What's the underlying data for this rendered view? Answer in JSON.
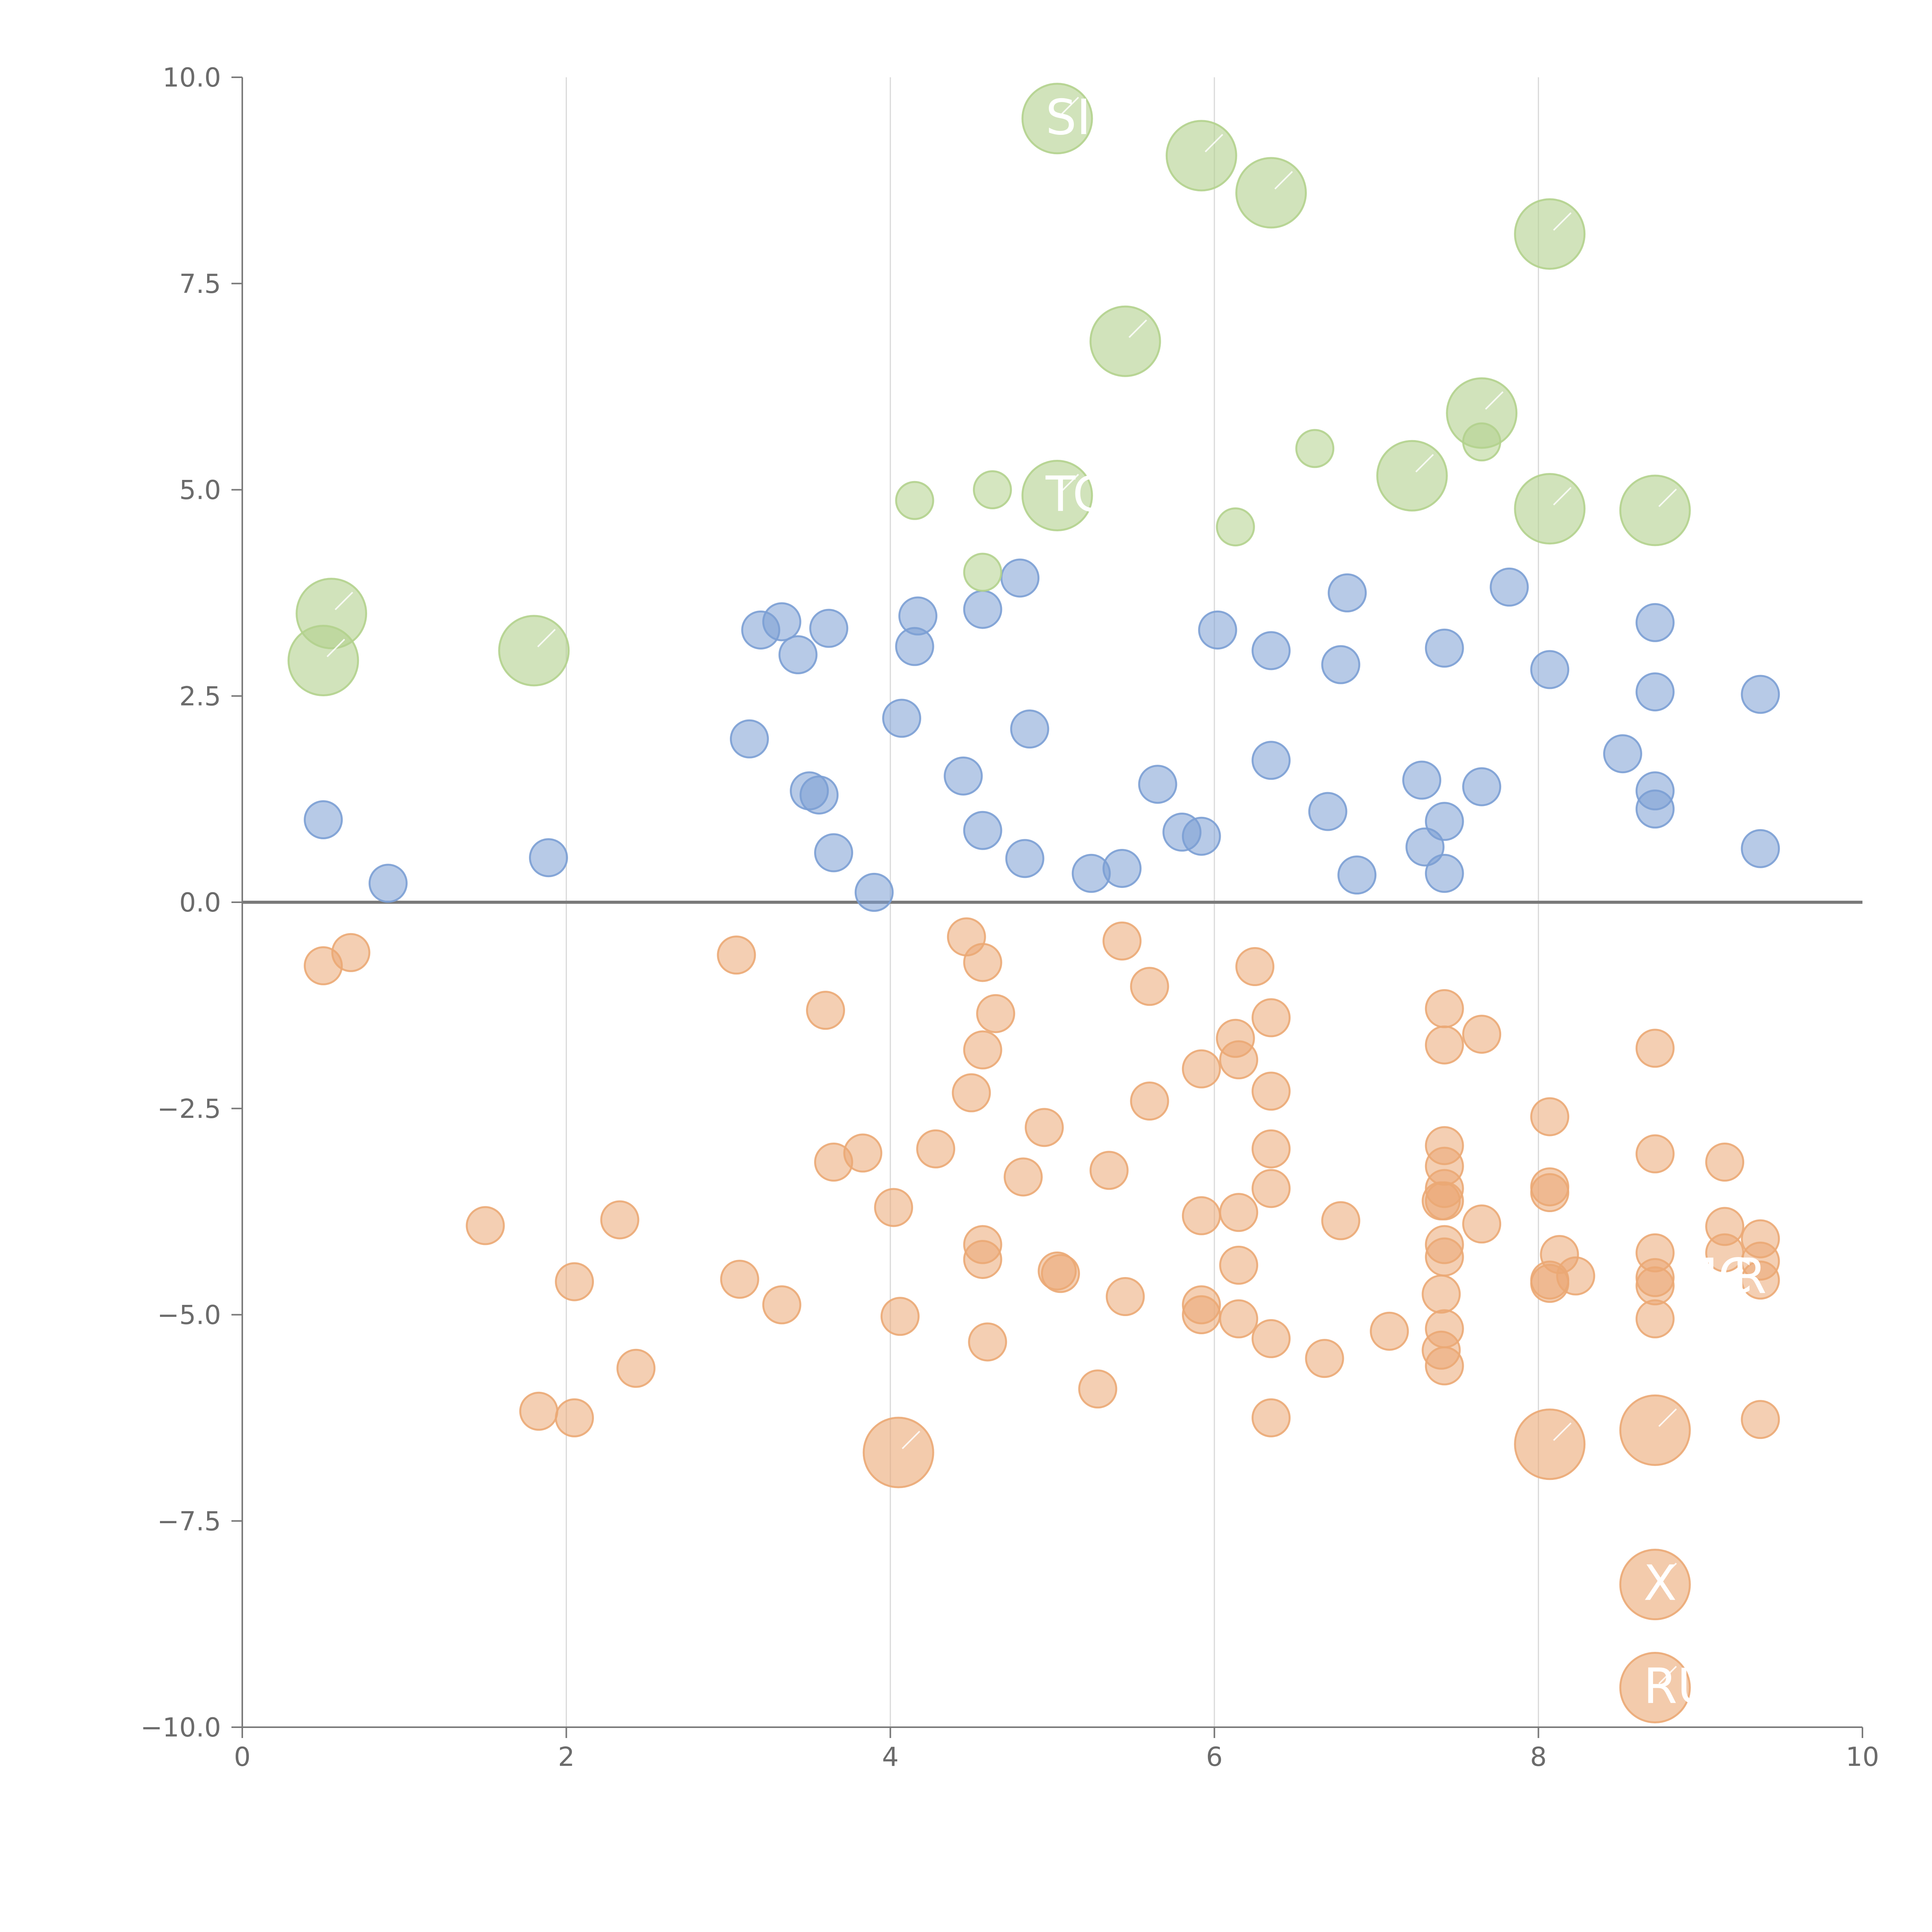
{
  "chart_data": {
    "type": "scatter",
    "xlim": [
      0,
      10
    ],
    "ylim": [
      -10,
      10
    ],
    "x_ticks": [
      "0",
      "2",
      "4",
      "6",
      "8",
      "10"
    ],
    "y_ticks": [
      "10.0",
      "7.5",
      "5.0",
      "2.5",
      "0.0",
      "−2.5",
      "−5.0",
      "−7.5",
      "−10.0"
    ],
    "grid": "vertical",
    "colors": {
      "blue": "#7b9fd4",
      "orange": "#eba874",
      "green": "#b3d18d"
    },
    "series": [
      {
        "color": "#7b9fd4",
        "points": [
          [
            0.5,
            1.0
          ],
          [
            0.9,
            0.23
          ],
          [
            1.89,
            0.54
          ],
          [
            3.13,
            1.98
          ],
          [
            3.2,
            3.3
          ],
          [
            3.33,
            3.4
          ],
          [
            3.43,
            3.0
          ],
          [
            3.5,
            1.35
          ],
          [
            3.56,
            1.3
          ],
          [
            3.62,
            3.32
          ],
          [
            3.65,
            0.6
          ],
          [
            3.9,
            0.12
          ],
          [
            4.07,
            2.23
          ],
          [
            4.15,
            3.1
          ],
          [
            4.17,
            3.47
          ],
          [
            4.45,
            1.53
          ],
          [
            4.57,
            0.87
          ],
          [
            4.57,
            3.55
          ],
          [
            4.8,
            3.93
          ],
          [
            4.83,
            0.53
          ],
          [
            4.86,
            2.1
          ],
          [
            5.24,
            0.35
          ],
          [
            5.43,
            0.41
          ],
          [
            5.65,
            1.43
          ],
          [
            5.8,
            0.85
          ],
          [
            5.92,
            0.8
          ],
          [
            6.02,
            3.3
          ],
          [
            6.35,
            3.05
          ],
          [
            6.35,
            1.72
          ],
          [
            6.7,
            1.1
          ],
          [
            6.78,
            2.88
          ],
          [
            6.82,
            3.75
          ],
          [
            6.88,
            0.33
          ],
          [
            7.28,
            1.48
          ],
          [
            7.3,
            0.67
          ],
          [
            7.42,
            0.35
          ],
          [
            7.42,
            0.98
          ],
          [
            7.42,
            3.08
          ],
          [
            7.65,
            1.4
          ],
          [
            7.82,
            3.82
          ],
          [
            8.07,
            2.82
          ],
          [
            8.52,
            1.8
          ],
          [
            8.72,
            3.39
          ],
          [
            8.72,
            2.55
          ],
          [
            8.72,
            1.35
          ],
          [
            8.72,
            1.13
          ],
          [
            9.37,
            2.52
          ],
          [
            9.37,
            0.65
          ]
        ]
      },
      {
        "color": "#eba874",
        "points": [
          [
            0.5,
            -0.77
          ],
          [
            0.67,
            -0.61
          ],
          [
            1.5,
            -3.92
          ],
          [
            1.83,
            -6.17
          ],
          [
            2.05,
            -4.6
          ],
          [
            2.05,
            -6.25
          ],
          [
            2.33,
            -3.85
          ],
          [
            2.43,
            -5.65
          ],
          [
            3.05,
            -0.64
          ],
          [
            3.07,
            -4.57
          ],
          [
            3.33,
            -4.88
          ],
          [
            3.6,
            -1.31
          ],
          [
            3.65,
            -3.15
          ],
          [
            3.83,
            -3.04
          ],
          [
            4.02,
            -3.7
          ],
          [
            4.06,
            -5.02
          ],
          [
            4.28,
            -2.99
          ],
          [
            4.47,
            -0.42
          ],
          [
            4.5,
            -2.31
          ],
          [
            4.57,
            -0.73
          ],
          [
            4.57,
            -1.79
          ],
          [
            4.57,
            -4.15
          ],
          [
            4.57,
            -4.33
          ],
          [
            4.6,
            -5.33
          ],
          [
            4.65,
            -1.35
          ],
          [
            4.82,
            -3.33
          ],
          [
            4.95,
            -2.73
          ],
          [
            5.03,
            -4.47
          ],
          [
            5.05,
            -4.5
          ],
          [
            5.28,
            -5.9
          ],
          [
            5.35,
            -3.25
          ],
          [
            5.43,
            -0.47
          ],
          [
            5.45,
            -4.78
          ],
          [
            5.6,
            -2.41
          ],
          [
            5.6,
            -1.02
          ],
          [
            5.92,
            -2.02
          ],
          [
            5.92,
            -3.8
          ],
          [
            5.92,
            -4.88
          ],
          [
            5.92,
            -5.0
          ],
          [
            6.13,
            -1.65
          ],
          [
            6.15,
            -1.91
          ],
          [
            6.15,
            -3.76
          ],
          [
            6.15,
            -4.4
          ],
          [
            6.15,
            -5.05
          ],
          [
            6.25,
            -0.78
          ],
          [
            6.35,
            -1.4
          ],
          [
            6.35,
            -2.29
          ],
          [
            6.35,
            -2.99
          ],
          [
            6.35,
            -3.47
          ],
          [
            6.35,
            -5.29
          ],
          [
            6.35,
            -6.25
          ],
          [
            6.68,
            -5.53
          ],
          [
            6.78,
            -3.86
          ],
          [
            7.08,
            -5.2
          ],
          [
            7.4,
            -3.62
          ],
          [
            7.4,
            -4.75
          ],
          [
            7.4,
            -5.43
          ],
          [
            7.42,
            -1.29
          ],
          [
            7.42,
            -1.73
          ],
          [
            7.42,
            -2.95
          ],
          [
            7.42,
            -3.2
          ],
          [
            7.42,
            -3.47
          ],
          [
            7.42,
            -3.62
          ],
          [
            7.42,
            -4.15
          ],
          [
            7.42,
            -4.3
          ],
          [
            7.42,
            -5.17
          ],
          [
            7.42,
            -5.62
          ],
          [
            7.65,
            -1.6
          ],
          [
            7.65,
            -3.9
          ],
          [
            8.07,
            -2.6
          ],
          [
            8.07,
            -3.45
          ],
          [
            8.07,
            -3.52
          ],
          [
            8.07,
            -4.58
          ],
          [
            8.07,
            -4.62
          ],
          [
            8.13,
            -4.27
          ],
          [
            8.23,
            -4.53
          ],
          [
            8.72,
            -1.77
          ],
          [
            8.72,
            -3.05
          ],
          [
            8.72,
            -4.25
          ],
          [
            8.72,
            -4.55
          ],
          [
            8.72,
            -4.65
          ],
          [
            8.72,
            -5.05
          ],
          [
            9.15,
            -3.93
          ],
          [
            9.15,
            -3.15
          ],
          [
            9.15,
            -4.25
          ],
          [
            9.37,
            -4.08
          ],
          [
            9.37,
            -4.35
          ],
          [
            9.37,
            -4.58
          ],
          [
            9.37,
            -6.27
          ]
        ]
      },
      {
        "color": "#b3d18d",
        "points": [
          [
            4.15,
            4.87
          ],
          [
            4.57,
            4.0
          ],
          [
            4.63,
            5.0
          ],
          [
            6.13,
            4.55
          ],
          [
            6.62,
            5.5
          ],
          [
            7.65,
            5.58
          ]
        ]
      }
    ],
    "large_points": [
      {
        "x": 5.03,
        "y": 9.5,
        "color": "#b3d18d",
        "label": "SI"
      },
      {
        "x": 5.92,
        "y": 9.05,
        "color": "#b3d18d",
        "label": ""
      },
      {
        "x": 6.35,
        "y": 8.6,
        "color": "#b3d18d",
        "label": ""
      },
      {
        "x": 8.07,
        "y": 8.1,
        "color": "#b3d18d",
        "label": ""
      },
      {
        "x": 5.45,
        "y": 6.8,
        "color": "#b3d18d",
        "label": ""
      },
      {
        "x": 7.65,
        "y": 5.93,
        "color": "#b3d18d",
        "label": ""
      },
      {
        "x": 7.22,
        "y": 5.17,
        "color": "#b3d18d",
        "label": ""
      },
      {
        "x": 5.03,
        "y": 4.93,
        "color": "#b3d18d",
        "label": "TC"
      },
      {
        "x": 8.07,
        "y": 4.77,
        "color": "#b3d18d",
        "label": ""
      },
      {
        "x": 8.72,
        "y": 4.75,
        "color": "#b3d18d",
        "label": ""
      },
      {
        "x": 0.55,
        "y": 3.5,
        "color": "#b3d18d",
        "label": ""
      },
      {
        "x": 0.5,
        "y": 2.93,
        "color": "#b3d18d",
        "label": ""
      },
      {
        "x": 1.8,
        "y": 3.05,
        "color": "#b3d18d",
        "label": ""
      },
      {
        "x": 4.05,
        "y": -6.67,
        "color": "#eba874",
        "label": ""
      },
      {
        "x": 8.07,
        "y": -6.57,
        "color": "#eba874",
        "label": ""
      },
      {
        "x": 8.72,
        "y": -6.4,
        "color": "#eba874",
        "label": ""
      },
      {
        "x": 8.72,
        "y": -8.27,
        "color": "#eba874",
        "label": "X"
      },
      {
        "x": 8.72,
        "y": -9.52,
        "color": "#eba874",
        "label": "RU"
      }
    ],
    "annotations": [
      {
        "text": "MC",
        "x": 8.85,
        "y": -4.55
      },
      {
        "text": "R",
        "x": 9.2,
        "y": -4.55
      }
    ]
  }
}
